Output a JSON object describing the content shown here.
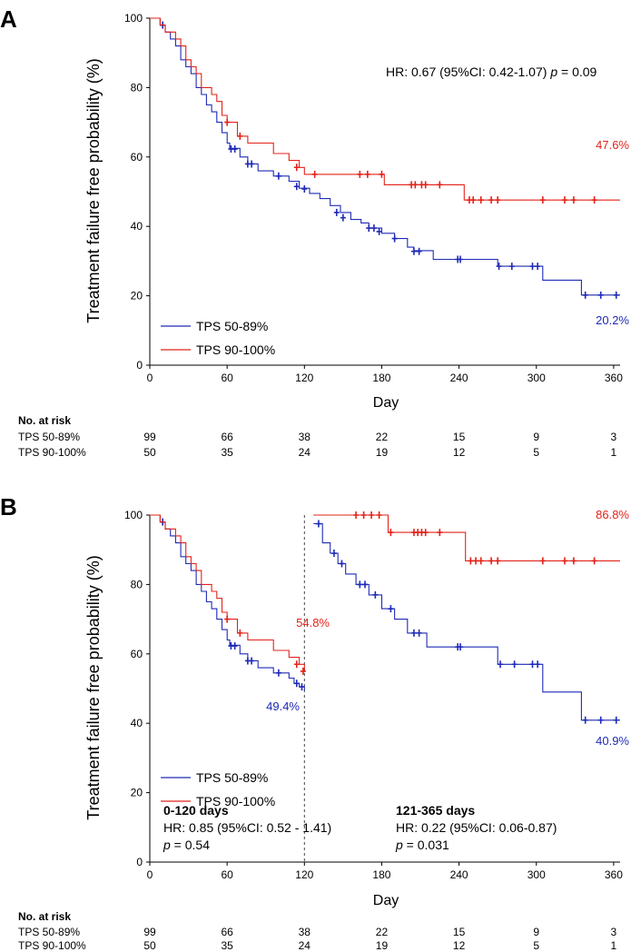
{
  "colors": {
    "blue": "#1f2ab5",
    "red": "#e2231a",
    "axis": "#000000"
  },
  "chart_data": [
    {
      "type": "line",
      "panel_label": "A",
      "xlabel": "Day",
      "ylabel": "Treatment failure free probability (%)",
      "xlim": [
        0,
        365
      ],
      "ylim": [
        0,
        100
      ],
      "xticks": [
        0,
        60,
        120,
        180,
        240,
        300,
        360
      ],
      "yticks": [
        0,
        20,
        40,
        60,
        80,
        100
      ],
      "annotation": "HR: 0.67 (95%CI: 0.42-1.07) ",
      "annotation_p": "p",
      "annotation_p_value": " = 0.09",
      "series": [
        {
          "name": "TPS 50-89%",
          "color": "#1f2ab5",
          "end_label": "20.2%",
          "steps": [
            [
              0,
              100
            ],
            [
              8,
              98
            ],
            [
              12,
              96
            ],
            [
              16,
              94
            ],
            [
              20,
              92
            ],
            [
              24,
              88
            ],
            [
              28,
              86
            ],
            [
              32,
              84
            ],
            [
              36,
              80
            ],
            [
              40,
              78
            ],
            [
              44,
              75
            ],
            [
              48,
              73
            ],
            [
              52,
              70
            ],
            [
              56,
              67
            ],
            [
              60,
              64
            ],
            [
              62,
              62.5
            ],
            [
              70,
              60
            ],
            [
              76,
              58
            ],
            [
              84,
              56
            ],
            [
              96,
              54.5
            ],
            [
              108,
              53
            ],
            [
              116,
              51
            ],
            [
              124,
              49.5
            ],
            [
              132,
              48
            ],
            [
              140,
              46
            ],
            [
              148,
              44
            ],
            [
              156,
              42
            ],
            [
              164,
              41
            ],
            [
              170,
              39.5
            ],
            [
              180,
              38
            ],
            [
              190,
              36.5
            ],
            [
              200,
              34
            ],
            [
              205,
              33
            ],
            [
              220,
              30.5
            ],
            [
              270,
              28.5
            ],
            [
              305,
              24.5
            ],
            [
              335,
              20.2
            ],
            [
              365,
              20.2
            ]
          ],
          "censors": [
            [
              10,
              98
            ],
            [
              63,
              62.3
            ],
            [
              66,
              62.3
            ],
            [
              76,
              58
            ],
            [
              79,
              58
            ],
            [
              100,
              54.5
            ],
            [
              114,
              51.5
            ],
            [
              120,
              50.8
            ],
            [
              145,
              44
            ],
            [
              150,
              42.5
            ],
            [
              170,
              39.5
            ],
            [
              174,
              39.5
            ],
            [
              178,
              38.5
            ],
            [
              190,
              36.5
            ],
            [
              205,
              32.8
            ],
            [
              209,
              32.8
            ],
            [
              239,
              30.5
            ],
            [
              241,
              30.5
            ],
            [
              271,
              28.5
            ],
            [
              281,
              28.5
            ],
            [
              297,
              28.5
            ],
            [
              301,
              28.5
            ],
            [
              338,
              20.2
            ],
            [
              350,
              20.2
            ],
            [
              362,
              20.2
            ]
          ]
        },
        {
          "name": "TPS 90-100%",
          "color": "#e2231a",
          "end_label": "47.6%",
          "steps": [
            [
              0,
              100
            ],
            [
              8,
              98
            ],
            [
              12,
              96
            ],
            [
              20,
              94
            ],
            [
              24,
              92
            ],
            [
              28,
              88
            ],
            [
              32,
              86
            ],
            [
              36,
              84
            ],
            [
              40,
              80
            ],
            [
              48,
              78
            ],
            [
              52,
              76
            ],
            [
              56,
              72
            ],
            [
              60,
              70
            ],
            [
              68,
              66
            ],
            [
              76,
              64
            ],
            [
              96,
              61
            ],
            [
              108,
              59
            ],
            [
              116,
              57
            ],
            [
              120,
              55
            ],
            [
              128,
              55
            ],
            [
              182,
              52
            ],
            [
              244,
              47.6
            ],
            [
              365,
              47.6
            ]
          ],
          "censors": [
            [
              60,
              70
            ],
            [
              70,
              66
            ],
            [
              114,
              57
            ],
            [
              128,
              55
            ],
            [
              163,
              55
            ],
            [
              169,
              55
            ],
            [
              180,
              55
            ],
            [
              203,
              52
            ],
            [
              206,
              52
            ],
            [
              211,
              52
            ],
            [
              214,
              52
            ],
            [
              225,
              52
            ],
            [
              248,
              47.6
            ],
            [
              251,
              47.6
            ],
            [
              257,
              47.6
            ],
            [
              265,
              47.6
            ],
            [
              270,
              47.6
            ],
            [
              305,
              47.6
            ],
            [
              322,
              47.6
            ],
            [
              329,
              47.6
            ],
            [
              345,
              47.6
            ]
          ]
        }
      ],
      "risk_table": {
        "title": "No. at risk",
        "times": [
          0,
          60,
          120,
          180,
          240,
          300,
          360
        ],
        "rows": [
          {
            "label": "TPS 50-89%",
            "values": [
              "99",
              "66",
              "38",
              "22",
              "15",
              "9",
              "3"
            ]
          },
          {
            "label": "TPS 90-100%",
            "values": [
              "50",
              "35",
              "24",
              "19",
              "12",
              "5",
              "1"
            ]
          }
        ]
      }
    },
    {
      "type": "line",
      "panel_label": "B",
      "xlabel": "Day",
      "ylabel": "Treatment failure free probability (%)",
      "xlim": [
        0,
        365
      ],
      "ylim": [
        0,
        100
      ],
      "xticks": [
        0,
        60,
        120,
        180,
        240,
        300,
        360
      ],
      "yticks": [
        0,
        20,
        40,
        60,
        80,
        100
      ],
      "split_day": 120,
      "left_title": "0-120 days",
      "left_hr": "HR: 0.85 (95%CI: 0.52 - 1.41)",
      "left_p_value": " = 0.54",
      "right_title": "121-365 days",
      "right_hr": "HR: 0.22 (95%CI: 0.06-0.87)",
      "right_p_value": " = 0.031",
      "p_symbol": "p",
      "series": [
        {
          "name": "TPS 50-89%",
          "color": "#1f2ab5",
          "early_label": "49.4%",
          "late_label": "40.9%",
          "early_steps": [
            [
              0,
              100
            ],
            [
              8,
              98
            ],
            [
              12,
              96
            ],
            [
              16,
              94
            ],
            [
              20,
              92
            ],
            [
              24,
              88
            ],
            [
              28,
              86
            ],
            [
              32,
              84
            ],
            [
              36,
              80
            ],
            [
              40,
              78
            ],
            [
              44,
              75
            ],
            [
              48,
              73
            ],
            [
              52,
              70
            ],
            [
              56,
              67
            ],
            [
              60,
              64
            ],
            [
              62,
              62.5
            ],
            [
              70,
              60
            ],
            [
              76,
              58
            ],
            [
              84,
              56
            ],
            [
              96,
              54.5
            ],
            [
              108,
              53
            ],
            [
              112,
              51.5
            ],
            [
              116,
              50.5
            ],
            [
              120,
              49.4
            ]
          ],
          "early_censors": [
            [
              10,
              98
            ],
            [
              63,
              62.3
            ],
            [
              66,
              62.3
            ],
            [
              76,
              58
            ],
            [
              79,
              58
            ],
            [
              100,
              54.5
            ],
            [
              114,
              51.5
            ],
            [
              118,
              50.5
            ]
          ],
          "late_steps": [
            [
              127,
              97.5
            ],
            [
              134,
              92
            ],
            [
              140,
              89
            ],
            [
              146,
              86
            ],
            [
              152,
              83
            ],
            [
              160,
              80
            ],
            [
              170,
              77
            ],
            [
              180,
              73
            ],
            [
              190,
              70
            ],
            [
              200,
              66
            ],
            [
              215,
              62
            ],
            [
              270,
              57
            ],
            [
              305,
              49
            ],
            [
              335,
              40.9
            ],
            [
              365,
              40.9
            ]
          ],
          "late_censors": [
            [
              131,
              97.5
            ],
            [
              143,
              89
            ],
            [
              149,
              86
            ],
            [
              163,
              80
            ],
            [
              167,
              80
            ],
            [
              175,
              77
            ],
            [
              187,
              73
            ],
            [
              205,
              66
            ],
            [
              209,
              66
            ],
            [
              239,
              62
            ],
            [
              241,
              62
            ],
            [
              272,
              57
            ],
            [
              283,
              57
            ],
            [
              297,
              57
            ],
            [
              301,
              57
            ],
            [
              338,
              40.9
            ],
            [
              350,
              40.9
            ],
            [
              362,
              40.9
            ]
          ]
        },
        {
          "name": "TPS 90-100%",
          "color": "#e2231a",
          "early_label": "54.8%",
          "late_label": "86.8%",
          "early_steps": [
            [
              0,
              100
            ],
            [
              8,
              98
            ],
            [
              12,
              96
            ],
            [
              20,
              94
            ],
            [
              24,
              92
            ],
            [
              28,
              88
            ],
            [
              32,
              86
            ],
            [
              36,
              84
            ],
            [
              40,
              80
            ],
            [
              48,
              78
            ],
            [
              52,
              76
            ],
            [
              56,
              72
            ],
            [
              60,
              70
            ],
            [
              68,
              66
            ],
            [
              76,
              64
            ],
            [
              96,
              61
            ],
            [
              108,
              59
            ],
            [
              116,
              57
            ],
            [
              120,
              54.8
            ]
          ],
          "early_censors": [
            [
              60,
              70
            ],
            [
              70,
              66
            ],
            [
              114,
              57
            ],
            [
              119,
              55
            ]
          ],
          "late_steps": [
            [
              127,
              100
            ],
            [
              185,
              95
            ],
            [
              245,
              86.8
            ],
            [
              365,
              86.8
            ]
          ],
          "late_censors": [
            [
              160,
              100
            ],
            [
              166,
              100
            ],
            [
              172,
              100
            ],
            [
              178,
              100
            ],
            [
              187,
              95
            ],
            [
              205,
              95
            ],
            [
              208,
              95
            ],
            [
              211,
              95
            ],
            [
              214,
              95
            ],
            [
              225,
              95
            ],
            [
              249,
              86.8
            ],
            [
              253,
              86.8
            ],
            [
              257,
              86.8
            ],
            [
              265,
              86.8
            ],
            [
              270,
              86.8
            ],
            [
              305,
              86.8
            ],
            [
              322,
              86.8
            ],
            [
              329,
              86.8
            ],
            [
              345,
              86.8
            ]
          ]
        }
      ],
      "risk_table": {
        "title": "No. at risk",
        "times": [
          0,
          60,
          120,
          180,
          240,
          300,
          360
        ],
        "rows": [
          {
            "label": "TPS 50-89%",
            "values": [
              "99",
              "66",
              "38",
              "22",
              "15",
              "9",
              "3"
            ]
          },
          {
            "label": "TPS 90-100%",
            "values": [
              "50",
              "35",
              "24",
              "19",
              "12",
              "5",
              "1"
            ]
          }
        ]
      }
    }
  ]
}
